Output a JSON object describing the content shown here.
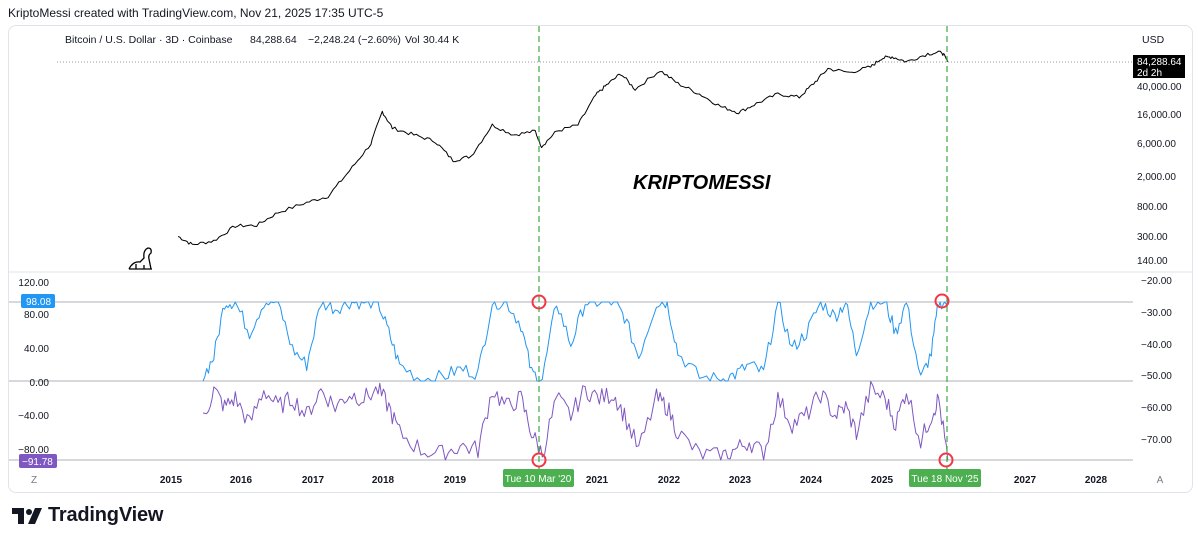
{
  "header": {
    "credit": "KriptoMessi created with TradingView.com, Nov 21, 2025 17:35 UTC-5"
  },
  "legend": {
    "symbol": "Bitcoin / U.S. Dollar · 3D · Coinbase",
    "price": "84,288.64",
    "change": "−2,248.24 (−2.60%)",
    "volume_label": "Vol",
    "volume": "30.44 K"
  },
  "watermark": "KRIPTOMESSI",
  "price_axis": {
    "currency": "USD",
    "ticks": [
      "40,000.00",
      "16,000.00",
      "6,000.00",
      "2,000.00",
      "800.00",
      "300.00",
      "140.00"
    ],
    "last_price": "84,288.64",
    "countdown": "2d 2h"
  },
  "osc_left_axis": {
    "ticks": [
      "120.00",
      "80.00",
      "40.00",
      "0.00",
      "−40.00",
      "−80.00"
    ],
    "badge_top": "98.08",
    "badge_bottom": "−91.78"
  },
  "osc_right_axis": {
    "ticks": [
      "−20.00",
      "−30.00",
      "−40.00",
      "−50.00",
      "−60.00",
      "−70.00"
    ]
  },
  "time_axis": {
    "ticks": [
      "2015",
      "2016",
      "2017",
      "2018",
      "2019",
      "2021",
      "2022",
      "2023",
      "2024",
      "2025",
      "2027",
      "2028"
    ],
    "marker_1": "Tue 10 Mar '20",
    "marker_2": "Tue 18 Nov '25",
    "left_button": "Z",
    "right_button": "A"
  },
  "colors": {
    "price_line": "#000000",
    "blue_series": "#2196f3",
    "purple_series": "#7e57c2",
    "marker_line": "#4caf50",
    "circle": "#f23645"
  },
  "brand": "TradingView",
  "chart_data": [
    {
      "type": "line",
      "title": "Bitcoin / U.S. Dollar · 3D · Coinbase",
      "y_scale": "log",
      "ylabel": "USD",
      "series": [
        {
          "name": "",
          "x": [
            2015.1,
            2015.3,
            2015.6,
            2015.9,
            2016.2,
            2016.5,
            2016.9,
            2017.2,
            2017.5,
            2017.8,
            2017.96,
            2018.1,
            2018.4,
            2018.7,
            2018.95,
            2019.2,
            2019.5,
            2019.8,
            2020.1,
            2020.19,
            2020.4,
            2020.7,
            2020.95,
            2021.1,
            2021.3,
            2021.5,
            2021.85,
            2022.1,
            2022.4,
            2022.7,
            2022.95,
            2023.2,
            2023.5,
            2023.8,
            2024.0,
            2024.2,
            2024.5,
            2024.8,
            2024.95,
            2025.1,
            2025.3,
            2025.6,
            2025.8,
            2025.88
          ],
          "y": [
            300,
            230,
            260,
            420,
            430,
            650,
            900,
            1100,
            2500,
            6000,
            17000,
            10000,
            8000,
            6500,
            3500,
            4000,
            11000,
            8000,
            9000,
            5500,
            9000,
            11000,
            29000,
            40000,
            58000,
            35000,
            64000,
            42000,
            30000,
            20000,
            16500,
            22000,
            30000,
            27000,
            42000,
            68000,
            60000,
            72000,
            95000,
            100000,
            85000,
            110000,
            115000,
            84288
          ]
        }
      ],
      "annotations": [
        "KRIPTOMESSI"
      ]
    },
    {
      "type": "line",
      "title": "",
      "ylim": [
        -91.78,
        120
      ],
      "series": [
        {
          "name": "",
          "color": "#2196f3",
          "x": [
            2015.45,
            2015.6,
            2015.75,
            2015.9,
            2016.1,
            2016.3,
            2016.5,
            2016.7,
            2016.9,
            2017.1,
            2017.3,
            2017.5,
            2017.7,
            2017.9,
            2018.05,
            2018.2,
            2018.5,
            2018.8,
            2019.05,
            2019.3,
            2019.5,
            2019.7,
            2019.9,
            2020.05,
            2020.2,
            2020.4,
            2020.6,
            2020.8,
            2021.0,
            2021.2,
            2021.35,
            2021.55,
            2021.8,
            2021.95,
            2022.1,
            2022.4,
            2022.7,
            2022.9,
            2023.1,
            2023.3,
            2023.5,
            2023.7,
            2023.9,
            2024.1,
            2024.3,
            2024.45,
            2024.6,
            2024.8,
            2025.0,
            2025.15,
            2025.3,
            2025.5,
            2025.65,
            2025.75,
            2025.88
          ],
          "y": [
            5,
            30,
            98,
            98,
            60,
            98,
            98,
            40,
            20,
            98,
            90,
            98,
            98,
            98,
            60,
            20,
            2,
            5,
            15,
            10,
            98,
            98,
            70,
            10,
            2,
            98,
            45,
            98,
            98,
            98,
            80,
            30,
            98,
            98,
            35,
            5,
            2,
            8,
            20,
            10,
            98,
            40,
            60,
            98,
            80,
            98,
            35,
            98,
            98,
            60,
            98,
            2,
            35,
            98,
            98.08
          ]
        },
        {
          "name": "",
          "color": "#7e57c2",
          "x": [
            2015.45,
            2015.6,
            2015.75,
            2015.9,
            2016.1,
            2016.3,
            2016.5,
            2016.7,
            2016.9,
            2017.1,
            2017.3,
            2017.5,
            2017.7,
            2017.9,
            2018.05,
            2018.2,
            2018.5,
            2018.8,
            2019.05,
            2019.3,
            2019.5,
            2019.7,
            2019.9,
            2020.05,
            2020.2,
            2020.4,
            2020.6,
            2020.8,
            2021.0,
            2021.2,
            2021.35,
            2021.55,
            2021.8,
            2021.95,
            2022.1,
            2022.4,
            2022.7,
            2022.9,
            2023.1,
            2023.3,
            2023.5,
            2023.7,
            2023.9,
            2024.1,
            2024.3,
            2024.45,
            2024.6,
            2024.8,
            2025.0,
            2025.15,
            2025.3,
            2025.5,
            2025.65,
            2025.75,
            2025.88
          ],
          "y": [
            -45,
            -10,
            -30,
            -20,
            -50,
            -10,
            -30,
            -20,
            -40,
            -10,
            -30,
            -15,
            -20,
            -10,
            -30,
            -60,
            -80,
            -85,
            -75,
            -80,
            -10,
            -30,
            -20,
            -60,
            -85,
            -20,
            -40,
            -10,
            -20,
            -15,
            -40,
            -80,
            -20,
            -30,
            -60,
            -85,
            -88,
            -80,
            -70,
            -85,
            -20,
            -50,
            -40,
            -15,
            -40,
            -30,
            -60,
            -10,
            -20,
            -50,
            -10,
            -70,
            -40,
            -20,
            -91.78
          ]
        }
      ]
    }
  ]
}
